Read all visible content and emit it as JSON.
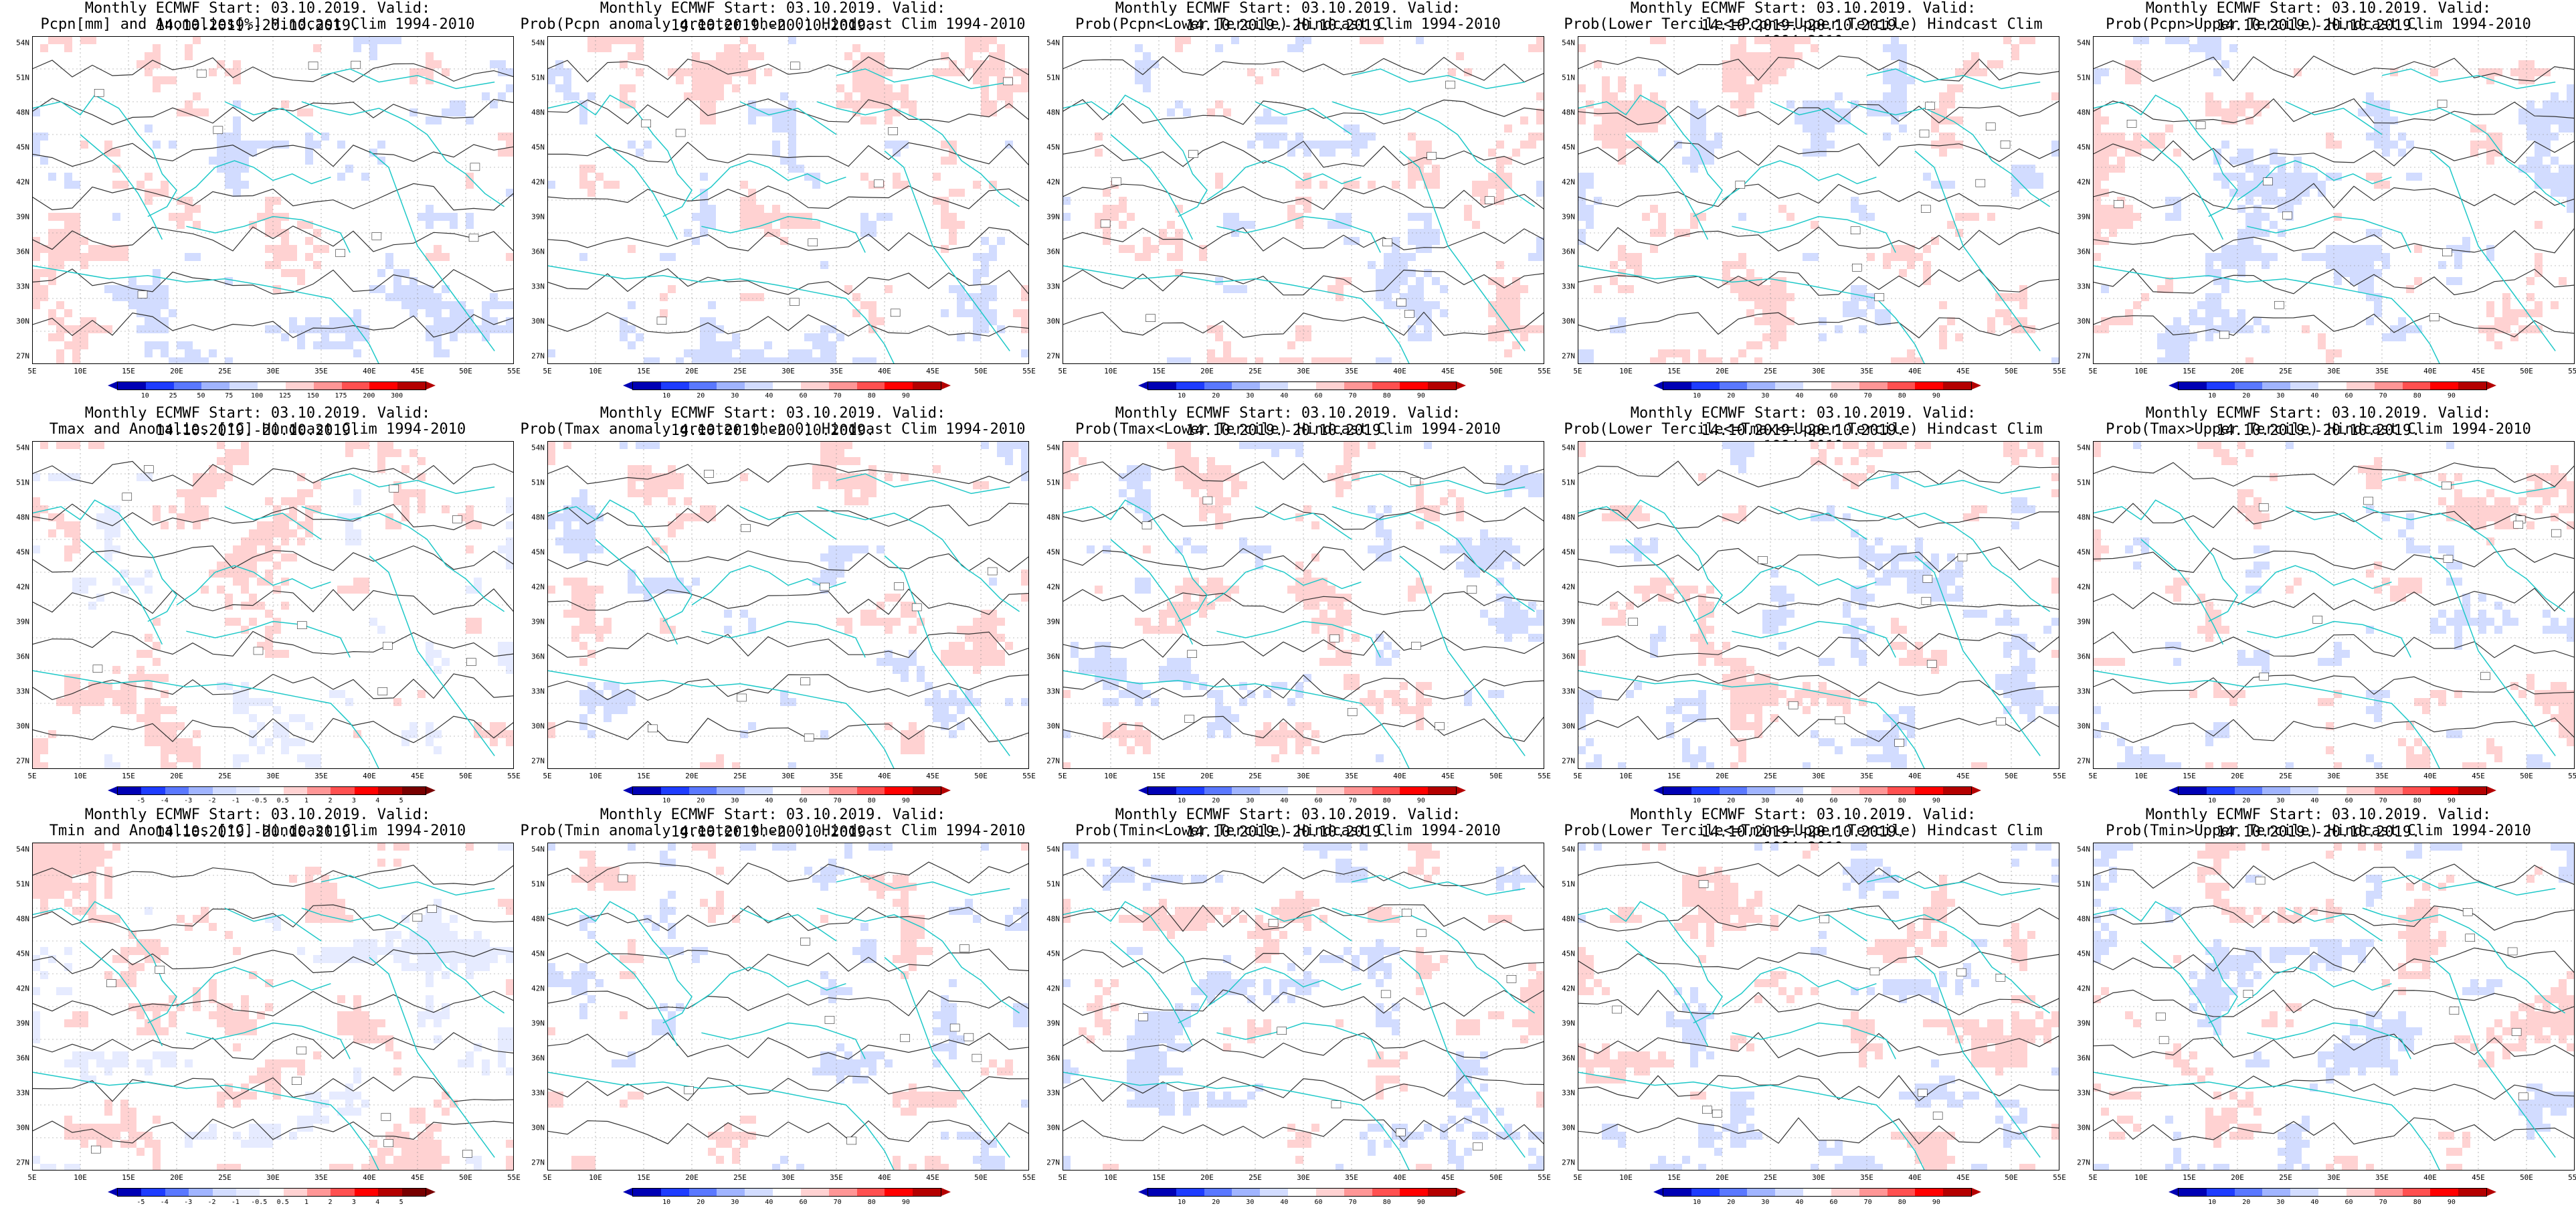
{
  "rows": [
    {
      "title1": "Monthly ECMWF Start: 03.10.2019. Valid: 14.10.2019.-20.10.2019.",
      "panels": [
        {
          "title2": "Pcpn[mm] and Anomalies[%] Hindcast Clim 1994-2010",
          "scheme": "precip_anom",
          "ticks": [
            "10",
            "25",
            "50",
            "75",
            "100",
            "125",
            "150",
            "175",
            "200",
            "300"
          ]
        },
        {
          "title2": "Prob(Pcpn anomaly greater then 0) Hindcast Clim 1994-2010",
          "scheme": "prob",
          "ticks": [
            "10",
            "20",
            "30",
            "40",
            "60",
            "70",
            "80",
            "90"
          ]
        },
        {
          "title2": "Prob(Pcpn<Lower Tercile) Hindcast Clim 1994-2010",
          "scheme": "prob",
          "ticks": [
            "10",
            "20",
            "30",
            "40",
            "60",
            "70",
            "80",
            "90"
          ]
        },
        {
          "title2": "Prob(Lower Tercile<=Pcpn<=Upper Tercile) Hindcast Clim 1994-2010",
          "scheme": "prob",
          "ticks": [
            "10",
            "20",
            "30",
            "40",
            "60",
            "70",
            "80",
            "90"
          ]
        },
        {
          "title2": "Prob(Pcpn>Upper Tercile) Hindcast Clim 1994-2010",
          "scheme": "prob",
          "ticks": [
            "10",
            "20",
            "30",
            "40",
            "60",
            "70",
            "80",
            "90"
          ]
        }
      ]
    },
    {
      "title1": "Monthly ECMWF Start: 03.10.2019. Valid: 14.10.2019.-20.10.2019.",
      "panels": [
        {
          "title2": "Tmax and Anomalies [°C] Hindcast Clim 1994-2010",
          "scheme": "temp_anom",
          "ticks": [
            "-5",
            "-4",
            "-3",
            "-2",
            "-1",
            "-0.5",
            "0.5",
            "1",
            "2",
            "3",
            "4",
            "5"
          ]
        },
        {
          "title2": "Prob(Tmax anomaly greater then 0) Hindcast Clim 1994-2010",
          "scheme": "prob",
          "ticks": [
            "10",
            "20",
            "30",
            "40",
            "60",
            "70",
            "80",
            "90"
          ]
        },
        {
          "title2": "Prob(Tmax<Lower Tercile) Hindcast Clim 1994-2010",
          "scheme": "prob",
          "ticks": [
            "10",
            "20",
            "30",
            "40",
            "60",
            "70",
            "80",
            "90"
          ]
        },
        {
          "title2": "Prob(Lower Tercile<=Tmax<=Upper Tercile) Hindcast Clim 1994-2010",
          "scheme": "prob",
          "ticks": [
            "10",
            "20",
            "30",
            "40",
            "60",
            "70",
            "80",
            "90"
          ]
        },
        {
          "title2": "Prob(Tmax>Upper Tercile) Hindcast Clim 1994-2010",
          "scheme": "prob",
          "ticks": [
            "10",
            "20",
            "30",
            "40",
            "60",
            "70",
            "80",
            "90"
          ]
        }
      ]
    },
    {
      "title1": "Monthly ECMWF Start: 03.10.2019. Valid: 14.10.2019.-20.10.2019.",
      "panels": [
        {
          "title2": "Tmin and Anomalies [°C] Hindcast Clim 1994-2010",
          "scheme": "temp_anom",
          "ticks": [
            "-5",
            "-4",
            "-3",
            "-2",
            "-1",
            "-0.5",
            "0.5",
            "1",
            "2",
            "3",
            "4",
            "5"
          ]
        },
        {
          "title2": "Prob(Tmin anomaly greater then 0) Hindcast Clim 1994-2010",
          "scheme": "prob",
          "ticks": [
            "10",
            "20",
            "30",
            "40",
            "60",
            "70",
            "80",
            "90"
          ]
        },
        {
          "title2": "Prob(Tmin<Lower Tercile) Hindcast Clim 1994-2010",
          "scheme": "prob",
          "ticks": [
            "10",
            "20",
            "30",
            "40",
            "60",
            "70",
            "80",
            "90"
          ]
        },
        {
          "title2": "Prob(Lower Tercile<=Tmin<=Upper Tercile) Hindcast Clim 1994-2010",
          "scheme": "prob",
          "ticks": [
            "10",
            "20",
            "30",
            "40",
            "60",
            "70",
            "80",
            "90"
          ]
        },
        {
          "title2": "Prob(Tmin>Upper Tercile) Hindcast Clim 1994-2010",
          "scheme": "prob",
          "ticks": [
            "10",
            "20",
            "30",
            "40",
            "60",
            "70",
            "80",
            "90"
          ]
        }
      ]
    }
  ],
  "lat_labels": [
    "54N",
    "51N",
    "48N",
    "45N",
    "42N",
    "39N",
    "36N",
    "33N",
    "30N",
    "27N"
  ],
  "lon_labels": [
    "5E",
    "10E",
    "15E",
    "20E",
    "25E",
    "30E",
    "35E",
    "40E",
    "45E",
    "50E",
    "55E"
  ],
  "colors": {
    "prob": [
      "#0000b4",
      "#1e3cff",
      "#5a78ff",
      "#a0b4ff",
      "#d2dcff",
      "#ffffff",
      "#ffd2d2",
      "#ff9696",
      "#ff5050",
      "#ff0000",
      "#b40000"
    ],
    "precip_anom": [
      "#0000b4",
      "#1e3cff",
      "#5a78ff",
      "#a0b4ff",
      "#d2dcff",
      "#ffffff",
      "#ffd2d2",
      "#ff9696",
      "#ff5050",
      "#ff0000",
      "#b40000"
    ],
    "temp_anom": [
      "#0000b4",
      "#1e3cff",
      "#5a78ff",
      "#a0b4ff",
      "#d2dcff",
      "#e6ebff",
      "#ffffff",
      "#ffd2d2",
      "#ff9696",
      "#ff5050",
      "#ff0000",
      "#b40000",
      "#780000"
    ],
    "coast": "#1ec8c8",
    "contour": "#333333"
  },
  "maps": [
    [
      "wb",
      "w",
      "b",
      "bb",
      "bbb",
      "w",
      "b",
      "bb",
      "bbb",
      "bbb",
      "rr",
      "r",
      "rrr",
      "rrr",
      "rr"
    ],
    [
      "b",
      "b",
      "w",
      "b",
      "bb",
      "bb",
      "b",
      "r",
      "b",
      "bbb",
      "w",
      "r",
      "rr",
      "b",
      "r"
    ],
    [
      "bb",
      "b",
      "w",
      "b",
      "bb",
      "b",
      "bb",
      "rr",
      "bb",
      "bb",
      "rr",
      "w",
      "b",
      "bbb",
      "bb"
    ],
    [
      "wr",
      "w",
      "b",
      "bb",
      "bb",
      "b",
      "bb",
      "bbb",
      "bb",
      "b",
      "bbb",
      "bbb",
      "bb",
      "bbb",
      "bbb"
    ],
    [
      "b",
      "b",
      "bb",
      "b",
      "b",
      "b",
      "b",
      "b",
      "bb",
      "b",
      "r",
      "bb",
      "rr",
      "rr",
      "b"
    ],
    [
      "rw",
      "rw",
      "rr",
      "rr",
      "rrr",
      "rr",
      "rr",
      "rrr",
      "rrr",
      "rr",
      "w",
      "rw",
      "rr",
      "rr",
      "rr"
    ],
    [
      "rr",
      "r",
      "rr",
      "rrr",
      "rrr",
      "rr",
      "rrr",
      "rrr",
      "rrr",
      "rrr",
      "w",
      "rr",
      "rrr",
      "rrr",
      "rr"
    ],
    [
      "b",
      "bb",
      "bbb",
      "bbb",
      "bbb",
      "bb",
      "bbb",
      "bbb",
      "bbb",
      "bbb",
      "b",
      "bbb",
      "bbb",
      "bbb",
      "bbb"
    ],
    [
      "b",
      "bb",
      "b",
      "bb",
      "bb",
      "bb",
      "bb",
      "bbb",
      "bb",
      "bb",
      "b",
      "b",
      "bb",
      "bb",
      "bb"
    ],
    [
      "rw",
      "r",
      "rr",
      "rr",
      "rr",
      "r",
      "rr",
      "rrr",
      "rrr",
      "rr",
      "b",
      "b",
      "rr",
      "rr",
      "r"
    ],
    [
      "rw",
      "r",
      "rr",
      "rr",
      "rrr",
      "r",
      "rr",
      "rrr",
      "rrr",
      "rr",
      "w",
      "r",
      "rr",
      "rr",
      "r"
    ],
    [
      "rr",
      "r",
      "rr",
      "rr",
      "rrr",
      "rr",
      "rrr",
      "rrrr",
      "rrrr",
      "rrr",
      "r",
      "rr",
      "rrr",
      "rrrr",
      "rrr"
    ],
    [
      "bb",
      "bb",
      "bbb",
      "bbb",
      "bbb",
      "bb",
      "bbb",
      "bbbb",
      "bbbb",
      "bbb",
      "b",
      "bb",
      "bbb",
      "bbbb",
      "bbb"
    ],
    [
      "b",
      "bb",
      "bb",
      "bb",
      "bb",
      "bb",
      "bb",
      "bbb",
      "bbb",
      "bb",
      "b",
      "bb",
      "bb",
      "bb",
      "bb"
    ],
    [
      "rw",
      "r",
      "rr",
      "rr",
      "rr",
      "w",
      "rr",
      "rrr",
      "rrr",
      "rr",
      "b",
      "b",
      "rr",
      "rrr",
      "rr"
    ]
  ]
}
